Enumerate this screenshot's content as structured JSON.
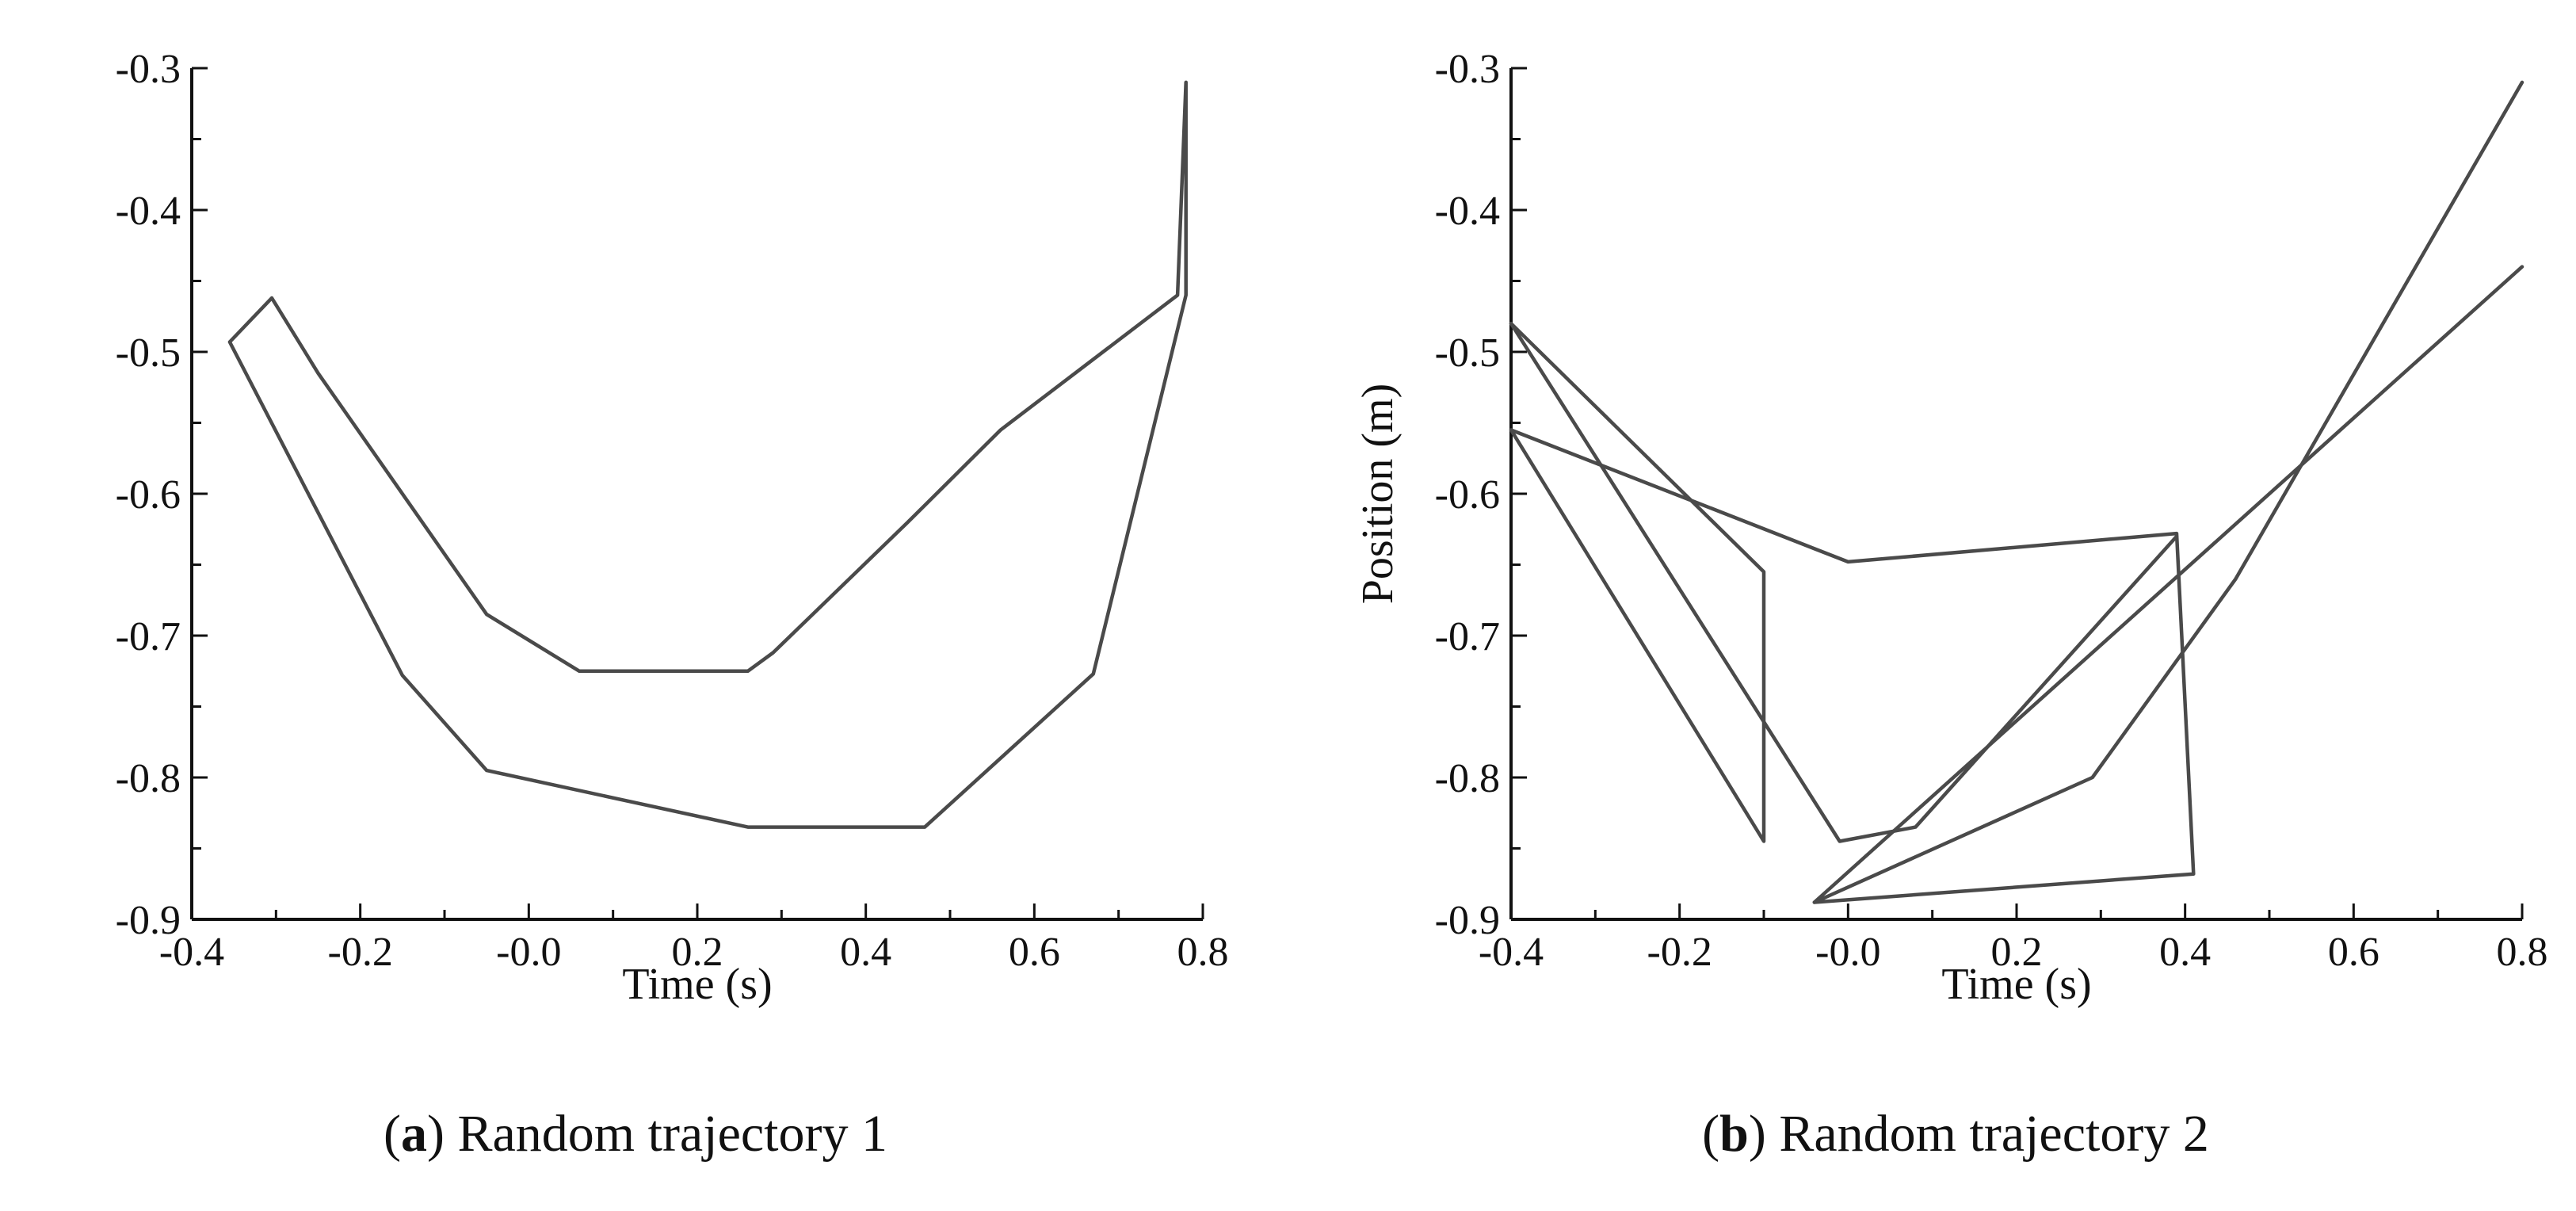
{
  "chart_data": [
    {
      "type": "line",
      "caption": {
        "letter": "a",
        "text": "Random trajectory 1"
      },
      "xlabel": "Time (s)",
      "ylabel": "",
      "xlim": [
        -0.4,
        0.8
      ],
      "ylim": [
        -0.9,
        -0.3
      ],
      "x_ticks": [
        -0.4,
        -0.2,
        0.0,
        0.2,
        0.4,
        0.6,
        0.8
      ],
      "x_tick_labels": [
        "-0.4",
        "-0.2",
        "-0.0",
        "0.2",
        "0.4",
        "0.6",
        "0.8"
      ],
      "y_ticks": [
        -0.3,
        -0.4,
        -0.5,
        -0.6,
        -0.7,
        -0.8,
        -0.9
      ],
      "y_tick_labels": [
        "-0.3",
        "-0.4",
        "-0.5",
        "-0.6",
        "-0.7",
        "-0.8",
        "-0.9"
      ],
      "y_minor_ticks": true,
      "line_color": "#4a4a4a",
      "series": [
        {
          "x": [
            -0.355,
            -0.305,
            -0.25,
            -0.05,
            0.06,
            0.26,
            0.29,
            0.45,
            0.56,
            0.77,
            0.78,
            0.78,
            0.67,
            0.47,
            0.26,
            -0.05,
            -0.15,
            -0.355
          ],
          "y": [
            -0.493,
            -0.462,
            -0.515,
            -0.685,
            -0.725,
            -0.725,
            -0.712,
            -0.62,
            -0.555,
            -0.46,
            -0.31,
            -0.46,
            -0.727,
            -0.835,
            -0.835,
            -0.795,
            -0.728,
            -0.493
          ]
        }
      ]
    },
    {
      "type": "line",
      "caption": {
        "letter": "b",
        "text": "Random trajectory 2"
      },
      "xlabel": "Time (s)",
      "ylabel": "Position (m)",
      "xlim": [
        -0.4,
        0.8
      ],
      "ylim": [
        -0.9,
        -0.3
      ],
      "x_ticks": [
        -0.4,
        -0.2,
        0.0,
        0.2,
        0.4,
        0.6,
        0.8
      ],
      "x_tick_labels": [
        "-0.4",
        "-0.2",
        "-0.0",
        "0.2",
        "0.4",
        "0.6",
        "0.8"
      ],
      "y_ticks": [
        -0.3,
        -0.4,
        -0.5,
        -0.6,
        -0.7,
        -0.8,
        -0.9
      ],
      "y_tick_labels": [
        "-0.3",
        "-0.4",
        "-0.5",
        "-0.6",
        "-0.7",
        "-0.8",
        "-0.9"
      ],
      "y_minor_ticks": true,
      "line_color": "#4a4a4a",
      "series": [
        {
          "x": [
            -0.4,
            -0.1,
            -0.1,
            -0.4
          ],
          "y": [
            -0.48,
            -0.655,
            -0.845,
            -0.555
          ]
        },
        {
          "x": [
            -0.4,
            -0.01,
            0.08,
            0.39
          ],
          "y": [
            -0.48,
            -0.845,
            -0.835,
            -0.63
          ]
        },
        {
          "x": [
            -0.4,
            0.0,
            0.39,
            0.41,
            -0.04,
            0.29,
            0.46,
            0.8
          ],
          "y": [
            -0.555,
            -0.648,
            -0.628,
            -0.868,
            -0.888,
            -0.8,
            -0.66,
            -0.31
          ]
        },
        {
          "x": [
            -0.04,
            0.8
          ],
          "y": [
            -0.888,
            -0.44
          ]
        }
      ]
    }
  ]
}
